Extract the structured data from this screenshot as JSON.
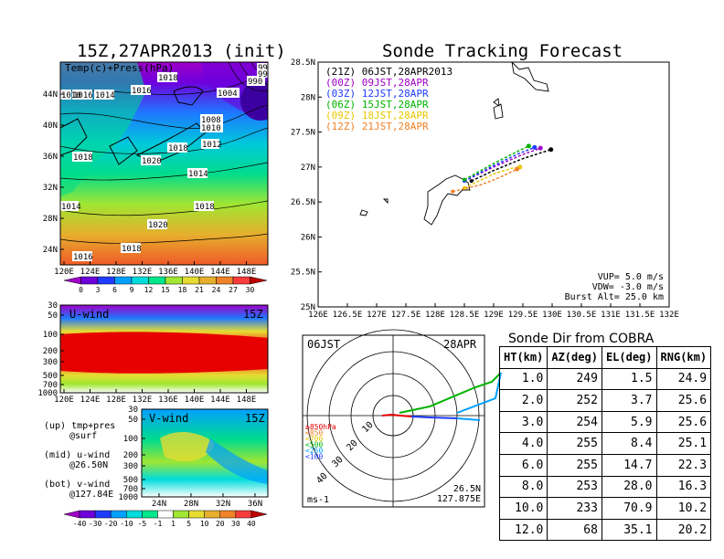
{
  "left_title": "15Z,27APR2013 (init)",
  "right_title": "Sonde Tracking Forecast",
  "map_panel": {
    "label": "Temp(c)+Press(hPa)",
    "yticks": [
      "44N",
      "40N",
      "36N",
      "32N",
      "28N",
      "24N"
    ],
    "xticks": [
      "120E",
      "124E",
      "128E",
      "132E",
      "136E",
      "140E",
      "144E",
      "148E"
    ],
    "isobar_labels": [
      "1016",
      "1018",
      "1014",
      "1016",
      "1010",
      "1004",
      "1008",
      "1010",
      "1012",
      "1018",
      "1014",
      "1018",
      "1020",
      "1014",
      "1018",
      "1020",
      "1018",
      "1016",
      "990",
      "99",
      "99"
    ],
    "colorbar_ticks": [
      "0",
      "3",
      "6",
      "9",
      "12",
      "15",
      "18",
      "21",
      "24",
      "27",
      "30"
    ],
    "colorbar_colors": [
      "#a000c8",
      "#6e00dc",
      "#1e3cff",
      "#00a0ff",
      "#00dcdc",
      "#00e68c",
      "#a0e632",
      "#e6dc32",
      "#e6af2d",
      "#f08228",
      "#fa3c3c",
      "#c00000"
    ]
  },
  "u_panel": {
    "label": "U-wind",
    "time": "15Z",
    "yticks": [
      "30",
      "50",
      "100",
      "200",
      "300",
      "500",
      "700",
      "1000"
    ],
    "xticks": [
      "120E",
      "124E",
      "128E",
      "132E",
      "136E",
      "140E",
      "144E",
      "148E"
    ]
  },
  "v_panel": {
    "label": "V-wind",
    "time": "15Z",
    "yticks": [
      "30",
      "50",
      "100",
      "200",
      "300",
      "500",
      "700",
      "1000"
    ],
    "xticks": [
      "24N",
      "28N",
      "32N",
      "36N"
    ]
  },
  "notes": [
    {
      "line1": "(up) tmp+pres",
      "line2": "@surf"
    },
    {
      "line1": "(mid) u-wind",
      "line2": "@26.50N"
    },
    {
      "line1": "(bot) v-wind",
      "line2": "@127.84E"
    }
  ],
  "wind_colorbar": {
    "ticks": [
      "-40",
      "-30",
      "-20",
      "-10",
      "-5",
      "-1",
      "1",
      "5",
      "10",
      "20",
      "30",
      "40"
    ],
    "colors": [
      "#a000c8",
      "#6e00dc",
      "#1e3cff",
      "#00a0ff",
      "#00dcdc",
      "#00e68c",
      "#ffffff",
      "#a0e632",
      "#e6dc32",
      "#e6af2d",
      "#f08228",
      "#fa3c3c",
      "#c00000"
    ]
  },
  "tracking": {
    "legend": [
      {
        "text": "(21Z)  06JST,28APR2013",
        "color": "#000000"
      },
      {
        "text": "(00Z)  09JST,28APR",
        "color": "#a000c8"
      },
      {
        "text": "(03Z)  12JST,28APR",
        "color": "#1e3cff"
      },
      {
        "text": "(06Z)  15JST,28APR",
        "color": "#00b400"
      },
      {
        "text": "(09Z)  18JST,28APR",
        "color": "#e6c800"
      },
      {
        "text": "(12Z)  21JST,28APR",
        "color": "#f08228"
      }
    ],
    "yticks": [
      "28.5N",
      "28N",
      "27.5N",
      "27N",
      "26.5N",
      "26N",
      "25.5N",
      "25N"
    ],
    "xticks": [
      "126E",
      "126.5E",
      "127E",
      "127.5E",
      "128E",
      "128.5E",
      "129E",
      "129.5E",
      "130E",
      "130.5E",
      "131E",
      "131.5E",
      "132E"
    ],
    "params": [
      "VUP=  5.0  m/s",
      "VDW=  -3.0  m/s",
      "Burst Alt=  25.0  km"
    ]
  },
  "chart_data": [
    {
      "type": "line",
      "title": "Sonde Tracking Forecast",
      "xlim": [
        126,
        132
      ],
      "ylim": [
        25,
        28.5
      ],
      "series": [
        {
          "name": "(21Z)  06JST,28APR2013",
          "x": [
            128.62,
            129.0,
            129.5,
            129.98
          ],
          "y": [
            26.8,
            26.95,
            27.12,
            27.25
          ]
        },
        {
          "name": "(00Z)  09JST,28APR",
          "x": [
            128.5,
            129.0,
            129.5,
            129.8
          ],
          "y": [
            26.8,
            27.0,
            27.18,
            27.27
          ]
        },
        {
          "name": "(03Z)  12JST,28APR",
          "x": [
            128.5,
            129.0,
            129.45,
            129.7
          ],
          "y": [
            26.8,
            27.02,
            27.2,
            27.28
          ]
        },
        {
          "name": "(06Z)  15JST,28APR",
          "x": [
            128.5,
            129.0,
            129.4,
            129.6
          ],
          "y": [
            26.82,
            27.05,
            27.22,
            27.3
          ]
        },
        {
          "name": "(09Z)  18JST,28APR",
          "x": [
            128.5,
            129.0,
            129.3,
            129.45
          ],
          "y": [
            26.7,
            26.9,
            26.98,
            27.0
          ]
        },
        {
          "name": "(12Z)  21JST,28APR",
          "x": [
            128.3,
            128.8,
            129.1,
            129.4
          ],
          "y": [
            26.65,
            26.75,
            26.85,
            26.97
          ]
        }
      ]
    },
    {
      "type": "table",
      "title": "Sonde Dir from COBRA",
      "columns": [
        "HT(km)",
        "AZ(deg)",
        "EL(deg)",
        "RNG(km)"
      ],
      "rows": [
        [
          "1.0",
          "249",
          "1.5",
          "24.9"
        ],
        [
          "2.0",
          "252",
          "3.7",
          "25.6"
        ],
        [
          "3.0",
          "254",
          "5.9",
          "25.6"
        ],
        [
          "4.0",
          "255",
          "8.4",
          "25.1"
        ],
        [
          "6.0",
          "255",
          "14.7",
          "22.3"
        ],
        [
          "8.0",
          "253",
          "28.0",
          "16.3"
        ],
        [
          "10.0",
          "233",
          "70.9",
          "10.2"
        ],
        [
          "12.0",
          "68",
          "35.1",
          "20.2"
        ]
      ]
    }
  ],
  "polar": {
    "time_left": "06JST",
    "time_right": "28APR",
    "ring_labels": [
      "10",
      "20",
      "30",
      "40"
    ],
    "legend": [
      {
        "text": "≥850hPa",
        "color": "#e60000"
      },
      {
        "text": "<850",
        "color": "#f08228"
      },
      {
        "text": "<700",
        "color": "#e6c800"
      },
      {
        "text": "<500",
        "color": "#00b400"
      },
      {
        "text": "<250",
        "color": "#00a0ff"
      },
      {
        "text": "<100",
        "color": "#1e3cff"
      }
    ],
    "units": "ms-1",
    "loc1": "26.5N",
    "loc2": "127.875E"
  }
}
